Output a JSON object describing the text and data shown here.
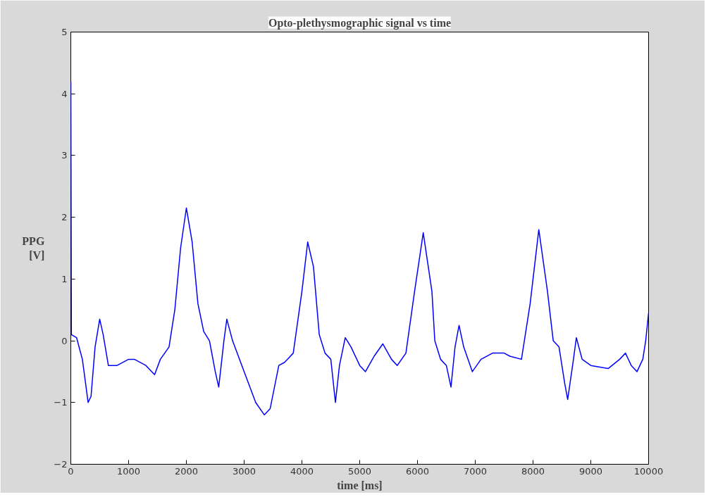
{
  "chart_data": {
    "type": "line",
    "title": "Opto-plethysmographic signal vs time",
    "xlabel": "time [ms]",
    "ylabel": "PPG\n[V]",
    "x": [
      0,
      10,
      100,
      200,
      300,
      350,
      420,
      500,
      560,
      650,
      800,
      1000,
      1100,
      1300,
      1450,
      1550,
      1700,
      1800,
      1900,
      2000,
      2100,
      2200,
      2300,
      2400,
      2500,
      2560,
      2650,
      2700,
      2800,
      3000,
      3200,
      3350,
      3450,
      3600,
      3700,
      3850,
      4000,
      4100,
      4200,
      4300,
      4400,
      4500,
      4580,
      4650,
      4750,
      4850,
      5000,
      5100,
      5250,
      5400,
      5550,
      5650,
      5800,
      5950,
      6100,
      6250,
      6300,
      6400,
      6500,
      6580,
      6650,
      6720,
      6800,
      6950,
      7100,
      7300,
      7500,
      7600,
      7800,
      7950,
      8100,
      8250,
      8350,
      8450,
      8550,
      8600,
      8700,
      8750,
      8850,
      9000,
      9300,
      9500,
      9600,
      9700,
      9800,
      9900,
      9950,
      10000
    ],
    "series": [
      {
        "color": "#0000ff",
        "values": [
          4.2,
          0.1,
          0.05,
          -0.3,
          -1.0,
          -0.9,
          -0.1,
          0.35,
          0.1,
          -0.4,
          -0.4,
          -0.3,
          -0.3,
          -0.4,
          -0.55,
          -0.3,
          -0.1,
          0.5,
          1.5,
          2.15,
          1.6,
          0.6,
          0.15,
          0.0,
          -0.5,
          -0.75,
          0.0,
          0.35,
          0.0,
          -0.5,
          -1.0,
          -1.2,
          -1.1,
          -0.4,
          -0.35,
          -0.2,
          0.8,
          1.6,
          1.2,
          0.1,
          -0.2,
          -0.3,
          -1.0,
          -0.4,
          0.05,
          -0.1,
          -0.4,
          -0.5,
          -0.25,
          -0.05,
          -0.3,
          -0.4,
          -0.2,
          0.8,
          1.75,
          0.8,
          0.0,
          -0.3,
          -0.4,
          -0.75,
          -0.1,
          0.25,
          -0.1,
          -0.5,
          -0.3,
          -0.2,
          -0.2,
          -0.25,
          -0.3,
          0.6,
          1.8,
          0.8,
          0.0,
          -0.1,
          -0.7,
          -0.95,
          -0.3,
          0.05,
          -0.3,
          -0.4,
          -0.45,
          -0.3,
          -0.2,
          -0.4,
          -0.5,
          -0.3,
          0.0,
          0.45
        ]
      }
    ],
    "xlim": [
      0,
      10000
    ],
    "ylim": [
      -2,
      5
    ],
    "xticks": [
      0,
      1000,
      2000,
      3000,
      4000,
      5000,
      6000,
      7000,
      8000,
      9000,
      10000
    ],
    "yticks": [
      -2,
      -1,
      0,
      1,
      2,
      3,
      4,
      5
    ],
    "grid": false
  }
}
